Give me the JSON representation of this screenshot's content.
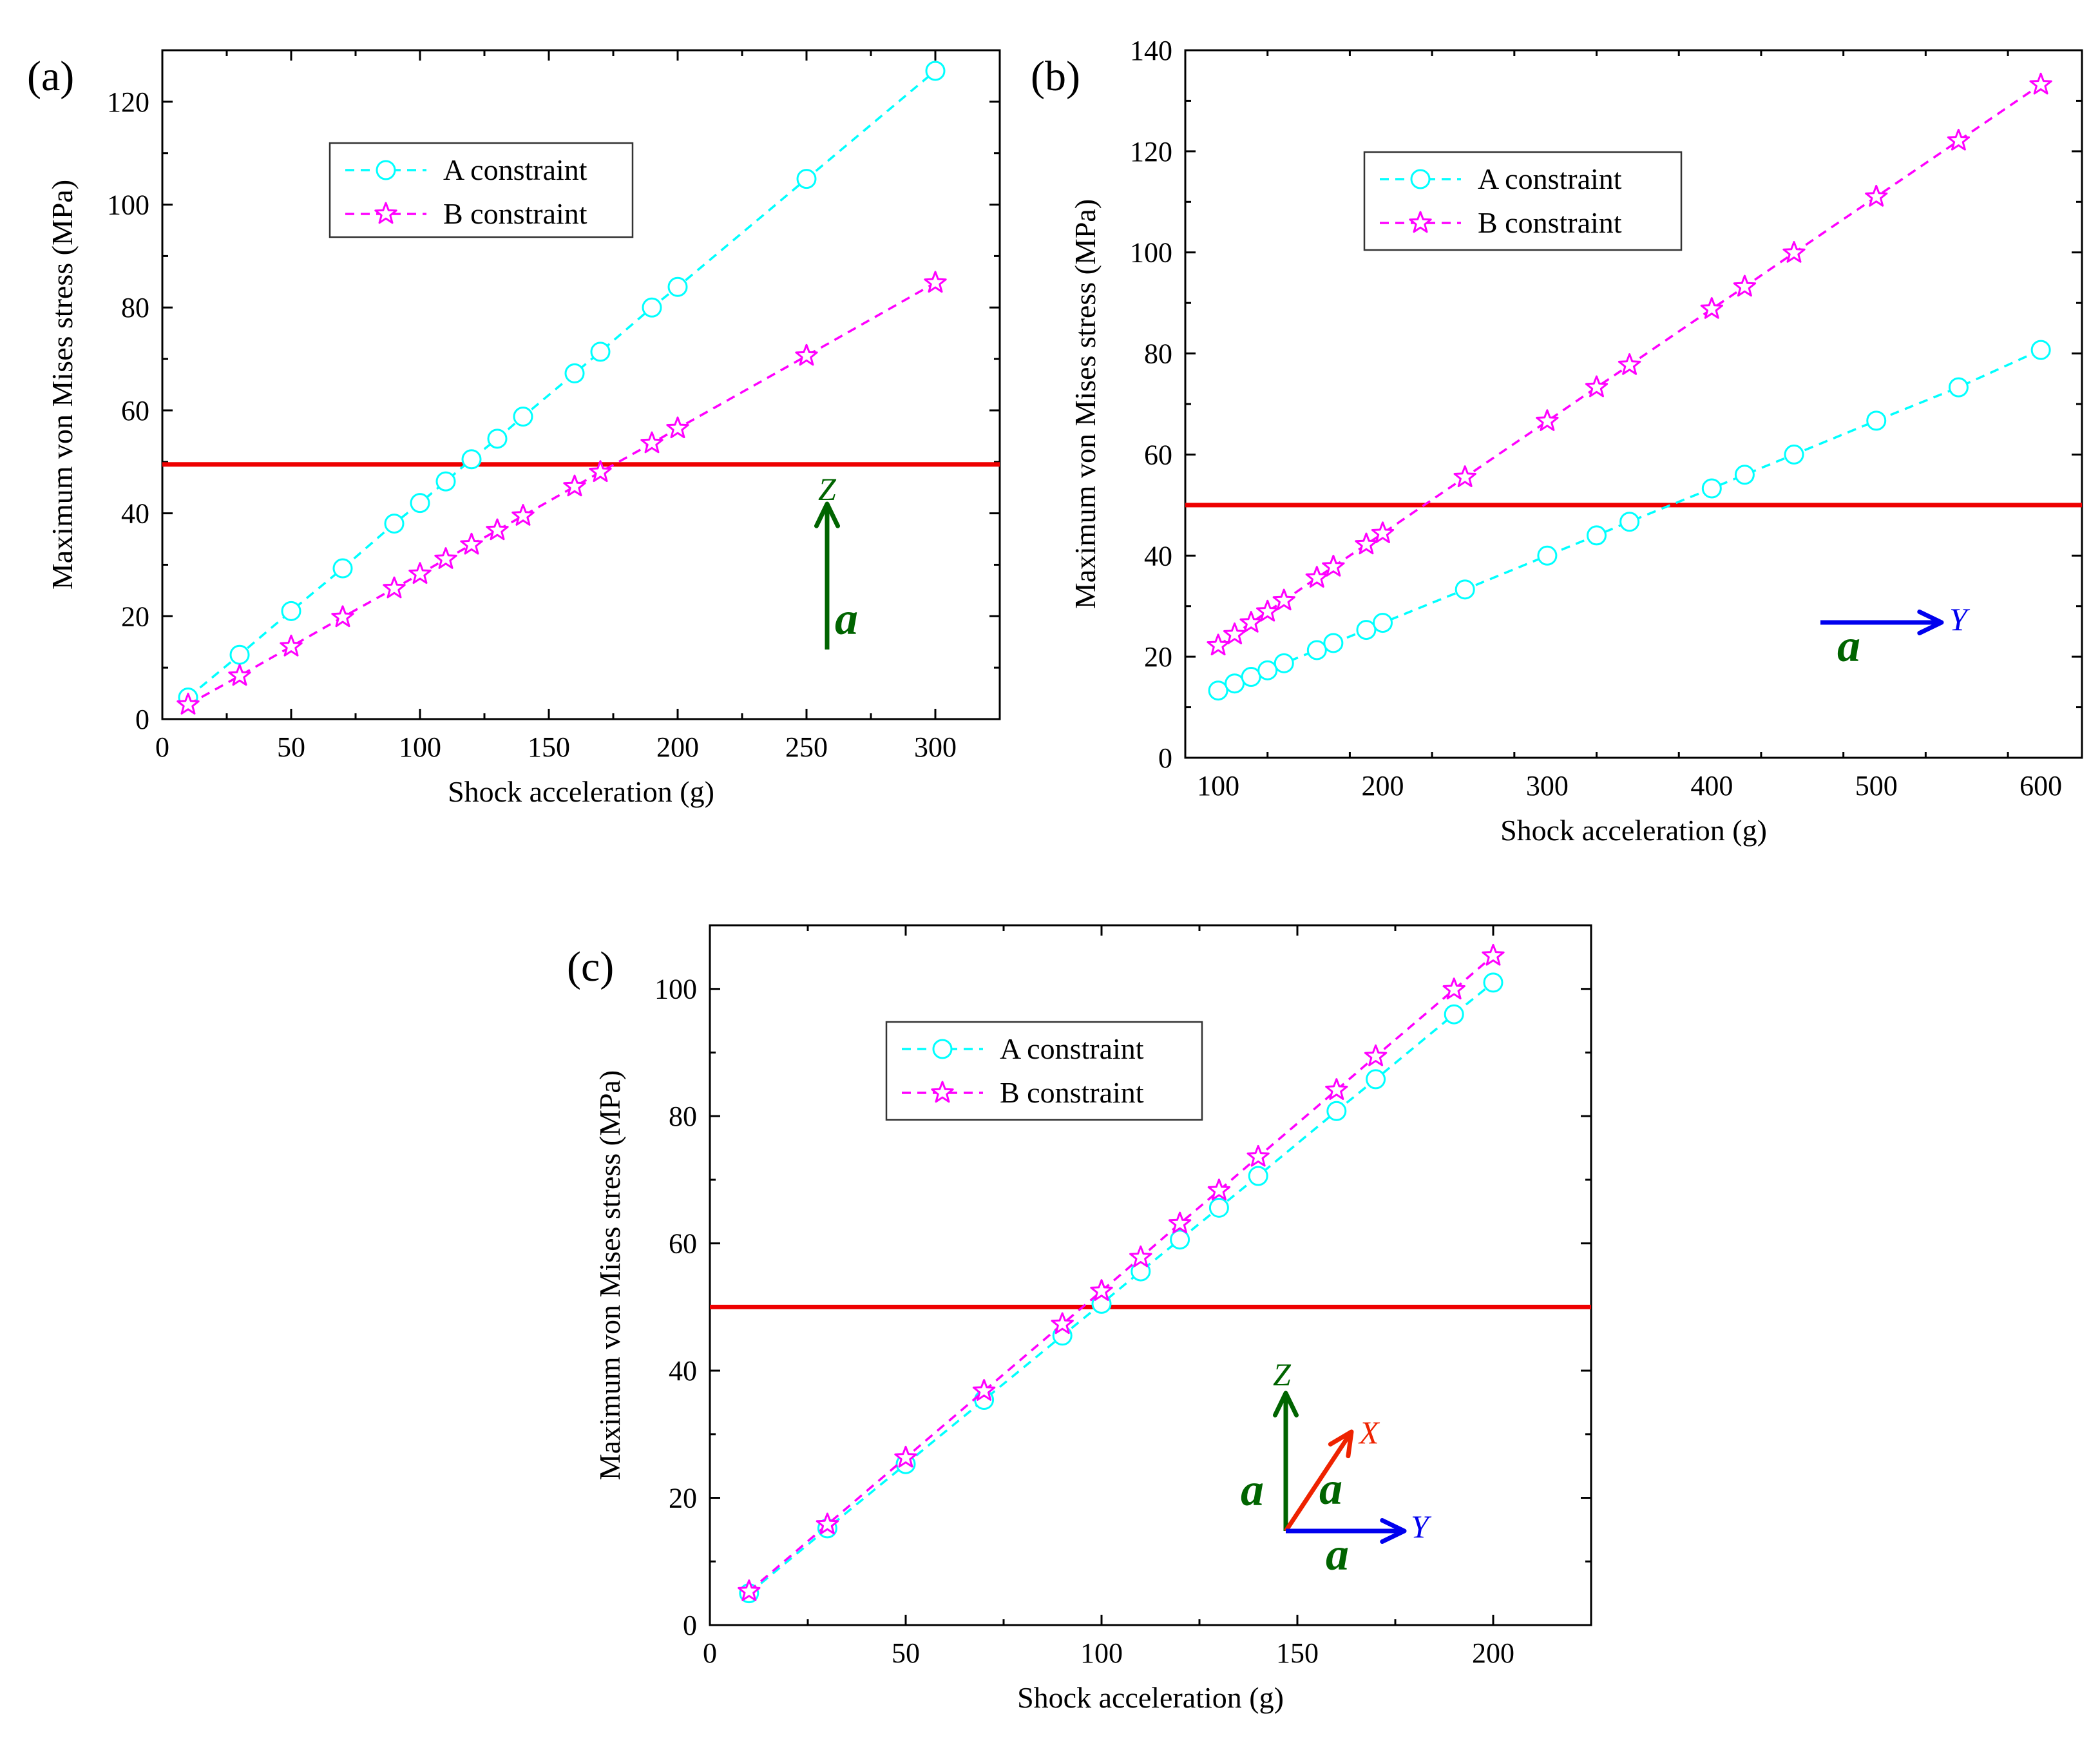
{
  "chart_data": [
    {
      "type": "line",
      "panel": "(a)",
      "xlabel": "Shock acceleration (g)",
      "ylabel": "Maximum von Mises stress (MPa)",
      "xlim": [
        0,
        325
      ],
      "ylim": [
        0,
        130
      ],
      "xticks": [
        0,
        50,
        100,
        150,
        200,
        250,
        300
      ],
      "yticks": [
        0,
        20,
        40,
        60,
        80,
        100,
        120
      ],
      "threshold": 49.5,
      "legend": [
        "A constraint",
        "B constraint"
      ],
      "series": [
        {
          "name": "A constraint",
          "marker": "circle",
          "color": "#00FFFF",
          "x": [
            10,
            30,
            50,
            70,
            90,
            100,
            110,
            120,
            130,
            140,
            160,
            170,
            190,
            200,
            250,
            300
          ],
          "y": [
            4.2,
            12.5,
            21,
            29.3,
            38,
            42,
            46.2,
            50.5,
            54.5,
            58.8,
            67.2,
            71.4,
            80,
            84,
            105,
            126
          ]
        },
        {
          "name": "B constraint",
          "marker": "star",
          "color": "#FF00FF",
          "x": [
            10,
            30,
            50,
            70,
            90,
            100,
            110,
            120,
            130,
            140,
            160,
            170,
            190,
            200,
            250,
            300
          ],
          "y": [
            2.8,
            8.4,
            14.1,
            19.8,
            25.4,
            28.2,
            31.1,
            33.9,
            36.7,
            39.5,
            45.2,
            48,
            53.6,
            56.5,
            70.6,
            84.8
          ]
        }
      ],
      "annotation": {
        "axis": "Z",
        "acc": "a",
        "axis_color": "#006400",
        "acc_color": "#006400"
      }
    },
    {
      "type": "line",
      "panel": "(b)",
      "xlabel": "Shock acceleration (g)",
      "ylabel": "Maximum von Mises stress (MPa)",
      "xlim": [
        80,
        625
      ],
      "ylim": [
        0,
        140
      ],
      "xticks": [
        100,
        200,
        300,
        400,
        500,
        600
      ],
      "yticks": [
        0,
        20,
        40,
        60,
        80,
        100,
        120,
        140
      ],
      "threshold": 50,
      "legend": [
        "A constraint",
        "B constraint"
      ],
      "series": [
        {
          "name": "A constraint",
          "marker": "circle",
          "color": "#00FFFF",
          "x": [
            100,
            110,
            120,
            130,
            140,
            160,
            170,
            190,
            200,
            250,
            300,
            330,
            350,
            400,
            420,
            450,
            500,
            550,
            600
          ],
          "y": [
            13.3,
            14.7,
            16,
            17.3,
            18.7,
            21.3,
            22.7,
            25.3,
            26.7,
            33.3,
            40,
            44,
            46.7,
            53.3,
            56,
            60,
            66.7,
            73.3,
            80.7
          ]
        },
        {
          "name": "B constraint",
          "marker": "star",
          "color": "#FF00FF",
          "x": [
            100,
            110,
            120,
            130,
            140,
            160,
            170,
            190,
            200,
            250,
            300,
            330,
            350,
            400,
            420,
            450,
            500,
            550,
            600
          ],
          "y": [
            22.2,
            24.4,
            26.7,
            28.9,
            31.1,
            35.6,
            37.8,
            42.2,
            44.4,
            55.5,
            66.6,
            73.3,
            77.7,
            88.8,
            93.2,
            99.9,
            111,
            122.1,
            133.2
          ]
        }
      ],
      "annotation": {
        "axis": "Y",
        "acc": "a",
        "axis_color": "#0000EE",
        "acc_color": "#006400"
      }
    },
    {
      "type": "line",
      "panel": "(c)",
      "xlabel": "Shock acceleration (g)",
      "ylabel": "Maximum von Mises stress (MPa)",
      "xlim": [
        0,
        225
      ],
      "ylim": [
        0,
        110
      ],
      "xticks": [
        0,
        50,
        100,
        150,
        200
      ],
      "yticks": [
        0,
        20,
        40,
        60,
        80,
        100
      ],
      "threshold": 50,
      "legend": [
        "A constraint",
        "B constraint"
      ],
      "series": [
        {
          "name": "A constraint",
          "marker": "circle",
          "color": "#00FFFF",
          "x": [
            10,
            30,
            50,
            70,
            90,
            100,
            110,
            120,
            130,
            140,
            160,
            170,
            190,
            200
          ],
          "y": [
            5,
            15.2,
            25.3,
            35.4,
            45.5,
            50.5,
            55.6,
            60.6,
            65.6,
            70.6,
            80.8,
            85.8,
            96,
            101
          ]
        },
        {
          "name": "B constraint",
          "marker": "star",
          "color": "#FF00FF",
          "x": [
            10,
            30,
            50,
            70,
            90,
            100,
            110,
            120,
            130,
            140,
            160,
            170,
            190,
            200
          ],
          "y": [
            5.3,
            15.8,
            26.3,
            36.8,
            47.3,
            52.5,
            57.8,
            63.1,
            68.3,
            73.6,
            84.1,
            89.4,
            99.9,
            105.2
          ]
        }
      ],
      "annotation": {
        "axes": [
          "Z",
          "X",
          "Y"
        ],
        "acc": "a",
        "axis_colors": [
          "#006400",
          "#EE2200",
          "#0000EE"
        ],
        "acc_color": "#006400"
      }
    }
  ],
  "style": {
    "threshold_color": "#EE0000",
    "axis_color": "#000000"
  }
}
